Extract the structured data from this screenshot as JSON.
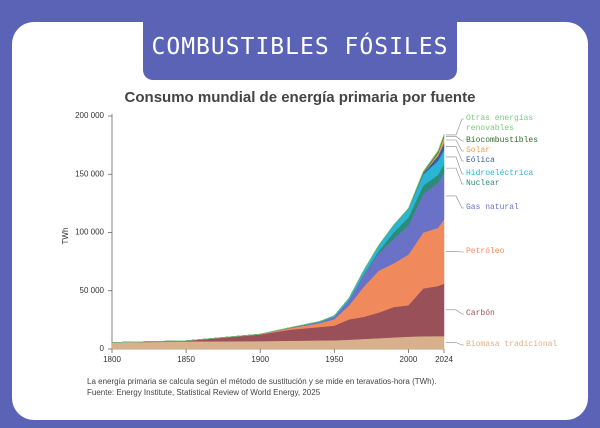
{
  "header": "COMBUSTIBLES FÓSILES",
  "chart_data": {
    "type": "stacked-area",
    "title": "Consumo mundial de energía primaria por fuente",
    "ylabel": "TWh",
    "notes": [
      "La energía primaria se calcula según el método de sustitución y se mide en teravatios-hora (TWh).",
      "Fuente: Energy Institute, Statistical Review of World Energy, 2025"
    ],
    "x": [
      1800,
      1850,
      1900,
      1920,
      1940,
      1950,
      1960,
      1970,
      1980,
      1990,
      2000,
      2010,
      2020,
      2024
    ],
    "xlim": [
      1800,
      2024
    ],
    "xticks": [
      1800,
      1850,
      1900,
      1950,
      2000,
      2024
    ],
    "ylim": [
      0,
      200000
    ],
    "yticks": [
      0,
      {
        "value": 50000,
        "label": "50 000"
      },
      {
        "value": 100000,
        "label": "100 000"
      },
      {
        "value": 150000,
        "label": "150 000"
      },
      {
        "value": 200000,
        "label": "200 000"
      }
    ],
    "grid": false,
    "series": [
      {
        "name": "Biomasa tradicional",
        "color": "#d9b08c",
        "values": [
          5600,
          6500,
          6800,
          7100,
          7400,
          7500,
          8000,
          8700,
          9300,
          10000,
          10600,
          11000,
          11100,
          11100
        ]
      },
      {
        "name": "Carbón",
        "color": "#9a5058",
        "values": [
          0,
          600,
          5700,
          9500,
          11500,
          12600,
          17500,
          19000,
          22000,
          26000,
          27000,
          41000,
          43000,
          45000
        ]
      },
      {
        "name": "Petróleo",
        "color": "#f08a5d",
        "values": [
          0,
          0,
          200,
          1300,
          3300,
          5500,
          12000,
          26000,
          36000,
          37500,
          43500,
          48000,
          50000,
          55000
        ]
      },
      {
        "name": "Gas natural",
        "color": "#6a72c8",
        "values": [
          0,
          0,
          60,
          250,
          900,
          2100,
          4500,
          10500,
          15000,
          21000,
          25000,
          33000,
          38500,
          40500
        ]
      },
      {
        "name": "Nuclear",
        "color": "#2e8b7a",
        "values": [
          0,
          0,
          0,
          0,
          0,
          0,
          0,
          200,
          2000,
          5600,
          7000,
          7400,
          7000,
          7300
        ]
      },
      {
        "name": "Hidroeléctrica",
        "color": "#29b6d6",
        "values": [
          0,
          0,
          0,
          200,
          500,
          900,
          1900,
          3500,
          4800,
          6100,
          7200,
          9400,
          12000,
          12000
        ]
      },
      {
        "name": "Eólica",
        "color": "#3a5ca8",
        "values": [
          0,
          0,
          0,
          0,
          0,
          0,
          0,
          0,
          0,
          10,
          90,
          950,
          4300,
          6000
        ]
      },
      {
        "name": "Solar",
        "color": "#f0a040",
        "values": [
          0,
          0,
          0,
          0,
          0,
          0,
          0,
          0,
          0,
          0,
          0,
          90,
          2300,
          5000
        ]
      },
      {
        "name": "Biocombustibles",
        "color": "#2f6b2f",
        "values": [
          0,
          0,
          0,
          0,
          0,
          0,
          0,
          0,
          50,
          100,
          100,
          900,
          1200,
          1300
        ]
      },
      {
        "name": "Otras energías renovables",
        "color": "#7dc97d",
        "values": [
          0,
          0,
          0,
          0,
          0,
          0,
          0,
          100,
          200,
          350,
          500,
          800,
          1000,
          1100
        ]
      }
    ]
  }
}
